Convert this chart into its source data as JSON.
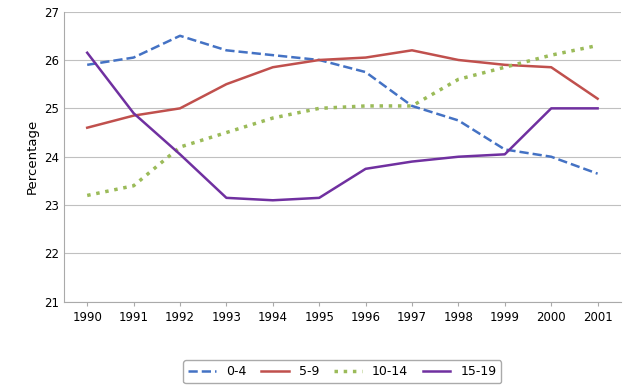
{
  "years": [
    1990,
    1991,
    1992,
    1993,
    1994,
    1995,
    1996,
    1997,
    1998,
    1999,
    2000,
    2001
  ],
  "series": {
    "0-4": [
      25.9,
      26.05,
      26.5,
      26.2,
      26.1,
      26.0,
      25.75,
      25.05,
      24.75,
      24.15,
      24.0,
      23.65
    ],
    "5-9": [
      24.6,
      24.85,
      25.0,
      25.5,
      25.85,
      26.0,
      26.05,
      26.2,
      26.0,
      25.9,
      25.85,
      25.2
    ],
    "10-14": [
      23.2,
      23.4,
      24.2,
      24.5,
      24.8,
      25.0,
      25.05,
      25.05,
      25.6,
      25.85,
      26.1,
      26.3
    ],
    "15-19": [
      26.15,
      24.9,
      24.05,
      23.15,
      23.1,
      23.15,
      23.75,
      23.9,
      24.0,
      24.05,
      25.0,
      25.0
    ]
  },
  "line_styles": {
    "0-4": {
      "color": "#4472C4",
      "linestyle": "--",
      "linewidth": 1.8
    },
    "5-9": {
      "color": "#C0504D",
      "linestyle": "-",
      "linewidth": 1.8
    },
    "10-14": {
      "color": "#9BBB59",
      "linestyle": ":",
      "linewidth": 2.5
    },
    "15-19": {
      "color": "#7030A0",
      "linestyle": "-",
      "linewidth": 1.8
    }
  },
  "ylim": [
    21,
    27
  ],
  "yticks": [
    21,
    22,
    23,
    24,
    25,
    26,
    27
  ],
  "ylabel": "Percentage",
  "background_color": "#ffffff",
  "grid_color": "#c0c0c0",
  "legend_labels": [
    "0-4",
    "5-9",
    "10-14",
    "15-19"
  ]
}
